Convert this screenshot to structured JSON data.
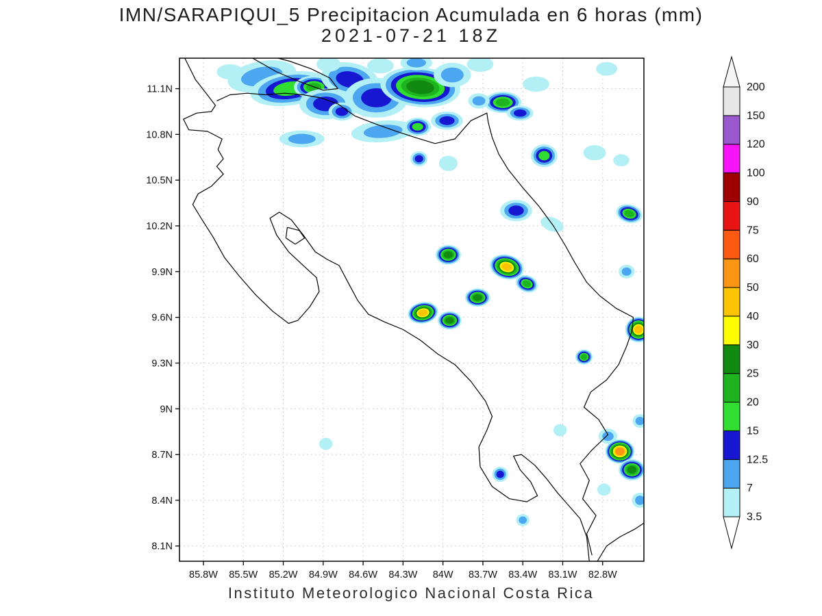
{
  "chart_data": {
    "type": "heatmap",
    "title": "IMN/SARAPIQUI_5 Precipitacion Acumulada en 6 horas (mm)",
    "subtitle": "2021-07-21 18Z",
    "caption": "Instituto Meteorologico Nacional Costa Rica",
    "units": "mm",
    "grid": true,
    "legend_position": "right",
    "map_extent": {
      "lon_min": -85.98,
      "lon_max": -82.49,
      "lat_min": 8.0,
      "lat_max": 11.3
    },
    "lat_ticks": [
      {
        "v": 11.1,
        "label": "11.1N"
      },
      {
        "v": 10.8,
        "label": "10.8N"
      },
      {
        "v": 10.5,
        "label": "10.5N"
      },
      {
        "v": 10.2,
        "label": "10.2N"
      },
      {
        "v": 9.9,
        "label": "9.9N"
      },
      {
        "v": 9.6,
        "label": "9.6N"
      },
      {
        "v": 9.3,
        "label": "9.3N"
      },
      {
        "v": 9.0,
        "label": "9N"
      },
      {
        "v": 8.7,
        "label": "8.7N"
      },
      {
        "v": 8.4,
        "label": "8.4N"
      },
      {
        "v": 8.1,
        "label": "8.1N"
      }
    ],
    "lon_ticks": [
      {
        "v": -85.8,
        "label": "85.8W"
      },
      {
        "v": -85.5,
        "label": "85.5W"
      },
      {
        "v": -85.2,
        "label": "85.2W"
      },
      {
        "v": -84.9,
        "label": "84.9W"
      },
      {
        "v": -84.6,
        "label": "84.6W"
      },
      {
        "v": -84.3,
        "label": "84.3W"
      },
      {
        "v": -84.0,
        "label": "84W"
      },
      {
        "v": -83.7,
        "label": "83.7W"
      },
      {
        "v": -83.4,
        "label": "83.4W"
      },
      {
        "v": -83.1,
        "label": "83.1W"
      },
      {
        "v": -82.8,
        "label": "82.8W"
      }
    ],
    "colorbar": {
      "boundaries": [
        3.5,
        7,
        12.5,
        15,
        20,
        25,
        30,
        40,
        50,
        60,
        75,
        90,
        100,
        120,
        150,
        200
      ],
      "labels": [
        "3.5",
        "7",
        "12.5",
        "15",
        "20",
        "25",
        "30",
        "40",
        "50",
        "60",
        "75",
        "90",
        "100",
        "120",
        "150",
        "200"
      ],
      "segment_colors": [
        "#b2f0f6",
        "#4da6f0",
        "#1717d1",
        "#30dd30",
        "#1fb41f",
        "#128a12",
        "#fdfd02",
        "#fcc402",
        "#fc9416",
        "#fc5a12",
        "#e81414",
        "#9e0000",
        "#f814f8",
        "#9b59d0",
        "#e6e6e6"
      ],
      "under_color": "#ffffff",
      "over_color": "#f5f5f5"
    },
    "coastline_color": "#000000",
    "coastlines": [
      [
        [
          -85.94,
          11.3
        ],
        [
          -85.86,
          11.16
        ],
        [
          -85.78,
          11.07
        ],
        [
          -85.71,
          10.99
        ],
        [
          -85.74,
          10.95
        ],
        [
          -85.85,
          10.94
        ],
        [
          -85.95,
          10.9
        ],
        [
          -85.91,
          10.83
        ],
        [
          -85.77,
          10.82
        ],
        [
          -85.66,
          10.77
        ],
        [
          -85.69,
          10.7
        ],
        [
          -85.65,
          10.64
        ],
        [
          -85.7,
          10.59
        ],
        [
          -85.65,
          10.54
        ],
        [
          -85.74,
          10.46
        ],
        [
          -85.84,
          10.41
        ],
        [
          -85.88,
          10.34
        ],
        [
          -85.81,
          10.24
        ],
        [
          -85.73,
          10.13
        ],
        [
          -85.64,
          9.99
        ],
        [
          -85.53,
          9.87
        ],
        [
          -85.41,
          9.75
        ],
        [
          -85.28,
          9.64
        ],
        [
          -85.16,
          9.56
        ],
        [
          -85.09,
          9.58
        ],
        [
          -85.0,
          9.67
        ],
        [
          -84.93,
          9.77
        ],
        [
          -84.95,
          9.86
        ],
        [
          -85.05,
          9.94
        ],
        [
          -85.16,
          10.03
        ],
        [
          -85.25,
          10.14
        ],
        [
          -85.3,
          10.25
        ],
        [
          -85.23,
          10.29
        ],
        [
          -85.14,
          10.24
        ],
        [
          -85.05,
          10.14
        ],
        [
          -84.96,
          10.03
        ],
        [
          -84.87,
          9.98
        ],
        [
          -84.78,
          9.94
        ],
        [
          -84.72,
          9.84
        ],
        [
          -84.64,
          9.71
        ],
        [
          -84.56,
          9.62
        ],
        [
          -84.44,
          9.57
        ],
        [
          -84.3,
          9.52
        ],
        [
          -84.17,
          9.45
        ],
        [
          -84.04,
          9.36
        ],
        [
          -83.91,
          9.29
        ],
        [
          -83.79,
          9.18
        ],
        [
          -83.68,
          9.05
        ],
        [
          -83.63,
          8.95
        ],
        [
          -83.67,
          8.86
        ],
        [
          -83.73,
          8.75
        ],
        [
          -83.72,
          8.62
        ],
        [
          -83.63,
          8.49
        ],
        [
          -83.5,
          8.41
        ],
        [
          -83.37,
          8.39
        ],
        [
          -83.29,
          8.43
        ],
        [
          -83.34,
          8.52
        ],
        [
          -83.42,
          8.6
        ],
        [
          -83.47,
          8.69
        ],
        [
          -83.41,
          8.7
        ],
        [
          -83.31,
          8.63
        ],
        [
          -83.22,
          8.54
        ],
        [
          -83.14,
          8.45
        ],
        [
          -83.06,
          8.37
        ],
        [
          -82.97,
          8.28
        ],
        [
          -82.92,
          8.16
        ],
        [
          -82.9,
          8.0
        ]
      ],
      [
        [
          -82.84,
          8.0
        ],
        [
          -82.77,
          8.1
        ],
        [
          -82.67,
          8.16
        ],
        [
          -82.56,
          8.21
        ],
        [
          -82.49,
          8.25
        ]
      ],
      [
        [
          -82.88,
          8.04
        ],
        [
          -82.92,
          8.18
        ],
        [
          -82.85,
          8.3
        ],
        [
          -82.95,
          8.41
        ],
        [
          -82.9,
          8.53
        ],
        [
          -82.97,
          8.64
        ],
        [
          -82.88,
          8.73
        ],
        [
          -82.76,
          8.83
        ],
        [
          -82.83,
          8.93
        ],
        [
          -82.94,
          9.01
        ],
        [
          -82.89,
          9.11
        ],
        [
          -82.77,
          9.19
        ],
        [
          -82.68,
          9.29
        ],
        [
          -82.62,
          9.41
        ],
        [
          -82.58,
          9.51
        ],
        [
          -82.57,
          9.6
        ]
      ],
      [
        [
          -82.57,
          9.6
        ],
        [
          -82.7,
          9.66
        ],
        [
          -82.82,
          9.74
        ],
        [
          -82.92,
          9.83
        ],
        [
          -83.01,
          9.96
        ],
        [
          -83.08,
          10.07
        ],
        [
          -83.17,
          10.2
        ],
        [
          -83.28,
          10.33
        ],
        [
          -83.4,
          10.45
        ],
        [
          -83.51,
          10.57
        ],
        [
          -83.58,
          10.67
        ],
        [
          -83.63,
          10.78
        ],
        [
          -83.66,
          10.88
        ],
        [
          -83.67,
          10.94
        ],
        [
          -83.79,
          10.89
        ],
        [
          -83.91,
          10.77
        ],
        [
          -84.06,
          10.74
        ],
        [
          -84.21,
          10.78
        ],
        [
          -84.35,
          10.82
        ],
        [
          -84.51,
          10.87
        ],
        [
          -84.66,
          10.92
        ],
        [
          -84.79,
          11.0
        ],
        [
          -84.92,
          11.04
        ],
        [
          -85.05,
          11.06
        ],
        [
          -85.19,
          11.07
        ],
        [
          -85.33,
          11.06
        ],
        [
          -85.47,
          11.07
        ],
        [
          -85.6,
          11.06
        ],
        [
          -85.7,
          11.02
        ]
      ],
      [
        [
          -85.43,
          11.3
        ],
        [
          -85.25,
          11.21
        ],
        [
          -85.06,
          11.14
        ],
        [
          -84.9,
          11.09
        ],
        [
          -84.79,
          11.1
        ],
        [
          -84.85,
          11.17
        ],
        [
          -84.99,
          11.23
        ],
        [
          -85.15,
          11.28
        ],
        [
          -85.24,
          11.3
        ]
      ],
      [
        [
          -85.17,
          10.19
        ],
        [
          -85.08,
          10.17
        ],
        [
          -85.04,
          10.12
        ],
        [
          -85.11,
          10.08
        ],
        [
          -85.18,
          10.12
        ],
        [
          -85.17,
          10.19
        ]
      ]
    ],
    "cell_format": [
      "lon",
      "lat",
      "rx_deg",
      "ry_deg",
      "rotation_deg",
      "max_level_mm"
    ],
    "precip_cells": [
      [
        -85.6,
        11.21,
        0.1,
        0.05,
        0,
        3.5
      ],
      [
        -85.36,
        11.18,
        0.26,
        0.1,
        -10,
        7
      ],
      [
        -85.15,
        11.1,
        0.3,
        0.11,
        -8,
        15
      ],
      [
        -84.97,
        11.11,
        0.15,
        0.075,
        0,
        20
      ],
      [
        -84.88,
        11.0,
        0.2,
        0.1,
        0,
        12.5
      ],
      [
        -84.7,
        11.16,
        0.22,
        0.11,
        10,
        12.5
      ],
      [
        -84.5,
        11.04,
        0.24,
        0.13,
        0,
        12.5
      ],
      [
        -84.17,
        11.11,
        0.3,
        0.13,
        5,
        25
      ],
      [
        -83.93,
        11.19,
        0.14,
        0.08,
        0,
        7
      ],
      [
        -84.2,
        11.27,
        0.12,
        0.05,
        0,
        7
      ],
      [
        -84.47,
        11.25,
        0.1,
        0.05,
        0,
        3.5
      ],
      [
        -84.86,
        11.26,
        0.09,
        0.05,
        0,
        3.5
      ],
      [
        -83.72,
        11.26,
        0.1,
        0.05,
        0,
        3.5
      ],
      [
        -83.55,
        11.01,
        0.14,
        0.07,
        0,
        20
      ],
      [
        -83.42,
        10.94,
        0.1,
        0.05,
        0,
        12.5
      ],
      [
        -83.3,
        11.13,
        0.1,
        0.05,
        0,
        3.5
      ],
      [
        -82.77,
        11.23,
        0.08,
        0.045,
        0,
        3.5
      ],
      [
        -84.76,
        10.95,
        0.1,
        0.06,
        0,
        12.5
      ],
      [
        -84.45,
        10.82,
        0.24,
        0.07,
        -5,
        7
      ],
      [
        -84.19,
        10.85,
        0.1,
        0.06,
        0,
        15
      ],
      [
        -83.97,
        10.89,
        0.12,
        0.06,
        0,
        12.5
      ],
      [
        -85.06,
        10.77,
        0.17,
        0.055,
        0,
        7
      ],
      [
        -84.18,
        10.64,
        0.065,
        0.05,
        0,
        12.5
      ],
      [
        -83.96,
        10.61,
        0.07,
        0.05,
        0,
        3.5
      ],
      [
        -83.73,
        11.02,
        0.08,
        0.05,
        0,
        7
      ],
      [
        -83.24,
        10.66,
        0.1,
        0.075,
        0,
        15
      ],
      [
        -82.86,
        10.68,
        0.085,
        0.05,
        0,
        3.5
      ],
      [
        -82.66,
        10.63,
        0.06,
        0.04,
        0,
        3.5
      ],
      [
        -83.45,
        10.3,
        0.12,
        0.07,
        0,
        12.5
      ],
      [
        -83.18,
        10.21,
        0.09,
        0.045,
        20,
        3.5
      ],
      [
        -82.6,
        10.28,
        0.1,
        0.06,
        15,
        20
      ],
      [
        -82.62,
        9.9,
        0.06,
        0.045,
        0,
        7
      ],
      [
        -83.96,
        10.01,
        0.095,
        0.065,
        0,
        25
      ],
      [
        -83.52,
        9.93,
        0.13,
        0.08,
        15,
        40
      ],
      [
        -83.37,
        9.82,
        0.085,
        0.055,
        20,
        20
      ],
      [
        -83.74,
        9.73,
        0.095,
        0.06,
        0,
        25
      ],
      [
        -84.15,
        9.63,
        0.115,
        0.07,
        -10,
        40
      ],
      [
        -83.95,
        9.58,
        0.09,
        0.06,
        0,
        25
      ],
      [
        -82.53,
        9.52,
        0.1,
        0.085,
        0,
        40
      ],
      [
        -82.94,
        9.34,
        0.065,
        0.05,
        0,
        20
      ],
      [
        -84.88,
        8.77,
        0.05,
        0.04,
        0,
        3.5
      ],
      [
        -83.57,
        8.57,
        0.06,
        0.05,
        0,
        12.5
      ],
      [
        -83.12,
        8.86,
        0.05,
        0.04,
        0,
        3.5
      ],
      [
        -82.76,
        8.82,
        0.07,
        0.05,
        0,
        7
      ],
      [
        -82.67,
        8.72,
        0.11,
        0.08,
        0,
        50
      ],
      [
        -82.58,
        8.6,
        0.1,
        0.07,
        0,
        25
      ],
      [
        -82.52,
        8.92,
        0.055,
        0.045,
        0,
        7
      ],
      [
        -83.4,
        8.27,
        0.05,
        0.04,
        0,
        7
      ],
      [
        -82.79,
        8.47,
        0.05,
        0.04,
        0,
        3.5
      ],
      [
        -82.52,
        8.4,
        0.06,
        0.05,
        0,
        7
      ]
    ]
  }
}
